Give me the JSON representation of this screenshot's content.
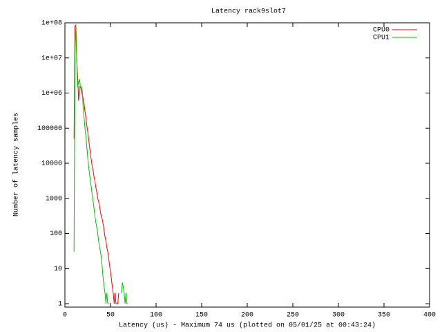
{
  "chart_data": {
    "type": "line",
    "title": "Latency rack9slot7",
    "x_label": "Latency (us) - Maximum 74 us (plotted on 05/01/25 at 00:43:24)",
    "y_label": "Number of latency samples",
    "log_y": true,
    "legend": "top-right",
    "xlim": [
      0,
      400
    ],
    "xticks": [
      0,
      50,
      100,
      150,
      200,
      250,
      300,
      350,
      400
    ],
    "ylim": [
      0.8,
      100000000
    ],
    "yticks": [
      1,
      10,
      100,
      1000,
      10000,
      100000,
      {
        "value": 1000000,
        "label": "1e+06"
      },
      {
        "value": 10000000,
        "label": "1e+07"
      },
      {
        "value": 100000000,
        "label": "1e+08"
      }
    ],
    "x": [
      10,
      11,
      12,
      13,
      14,
      15,
      16,
      17,
      18,
      19,
      20,
      21,
      22,
      23,
      24,
      25,
      26,
      27,
      28,
      29,
      30,
      31,
      32,
      33,
      34,
      35,
      36,
      37,
      38,
      39,
      40,
      41,
      42,
      43,
      44,
      45,
      46,
      47,
      48,
      49,
      50,
      51,
      52,
      53,
      54,
      55,
      56,
      57,
      58,
      59,
      60,
      61,
      62,
      63,
      64,
      65,
      66,
      67,
      68,
      69,
      70,
      71,
      72,
      73,
      74
    ],
    "series": [
      {
        "name": "CPU0",
        "color": "#ff0000",
        "values": [
          50000,
          80000000,
          85000000,
          8000000,
          3000000,
          600000,
          1500000,
          1500000,
          1200000,
          900000,
          700000,
          500000,
          300000,
          200000,
          120000,
          80000,
          50000,
          30000,
          18000,
          12000,
          8000,
          6000,
          4000,
          3000,
          2000,
          1500,
          1000,
          800,
          600,
          400,
          300,
          250,
          180,
          120,
          80,
          60,
          40,
          30,
          20,
          12,
          8,
          5,
          3,
          2,
          1,
          2,
          1,
          1,
          1,
          2,
          null,
          null,
          null,
          null,
          null,
          null,
          null,
          null,
          null,
          null,
          null,
          null,
          null,
          null,
          null
        ]
      },
      {
        "name": "CPU1",
        "color": "#00c000",
        "values": [
          30,
          10000000,
          90000000,
          10000000,
          1500000,
          2000000,
          2500000,
          1500000,
          1500000,
          1200000,
          400000,
          200000,
          100000,
          60000,
          30000,
          15000,
          8000,
          5000,
          3000,
          2000,
          1200,
          800,
          500,
          300,
          200,
          150,
          100,
          60,
          40,
          30,
          20,
          10,
          5,
          3,
          2,
          1,
          2,
          1,
          1,
          null,
          null,
          null,
          null,
          null,
          null,
          null,
          2,
          null,
          null,
          null,
          null,
          null,
          2,
          4,
          3,
          2,
          1,
          2,
          1,
          1,
          null,
          null,
          null,
          1,
          null
        ]
      }
    ]
  }
}
